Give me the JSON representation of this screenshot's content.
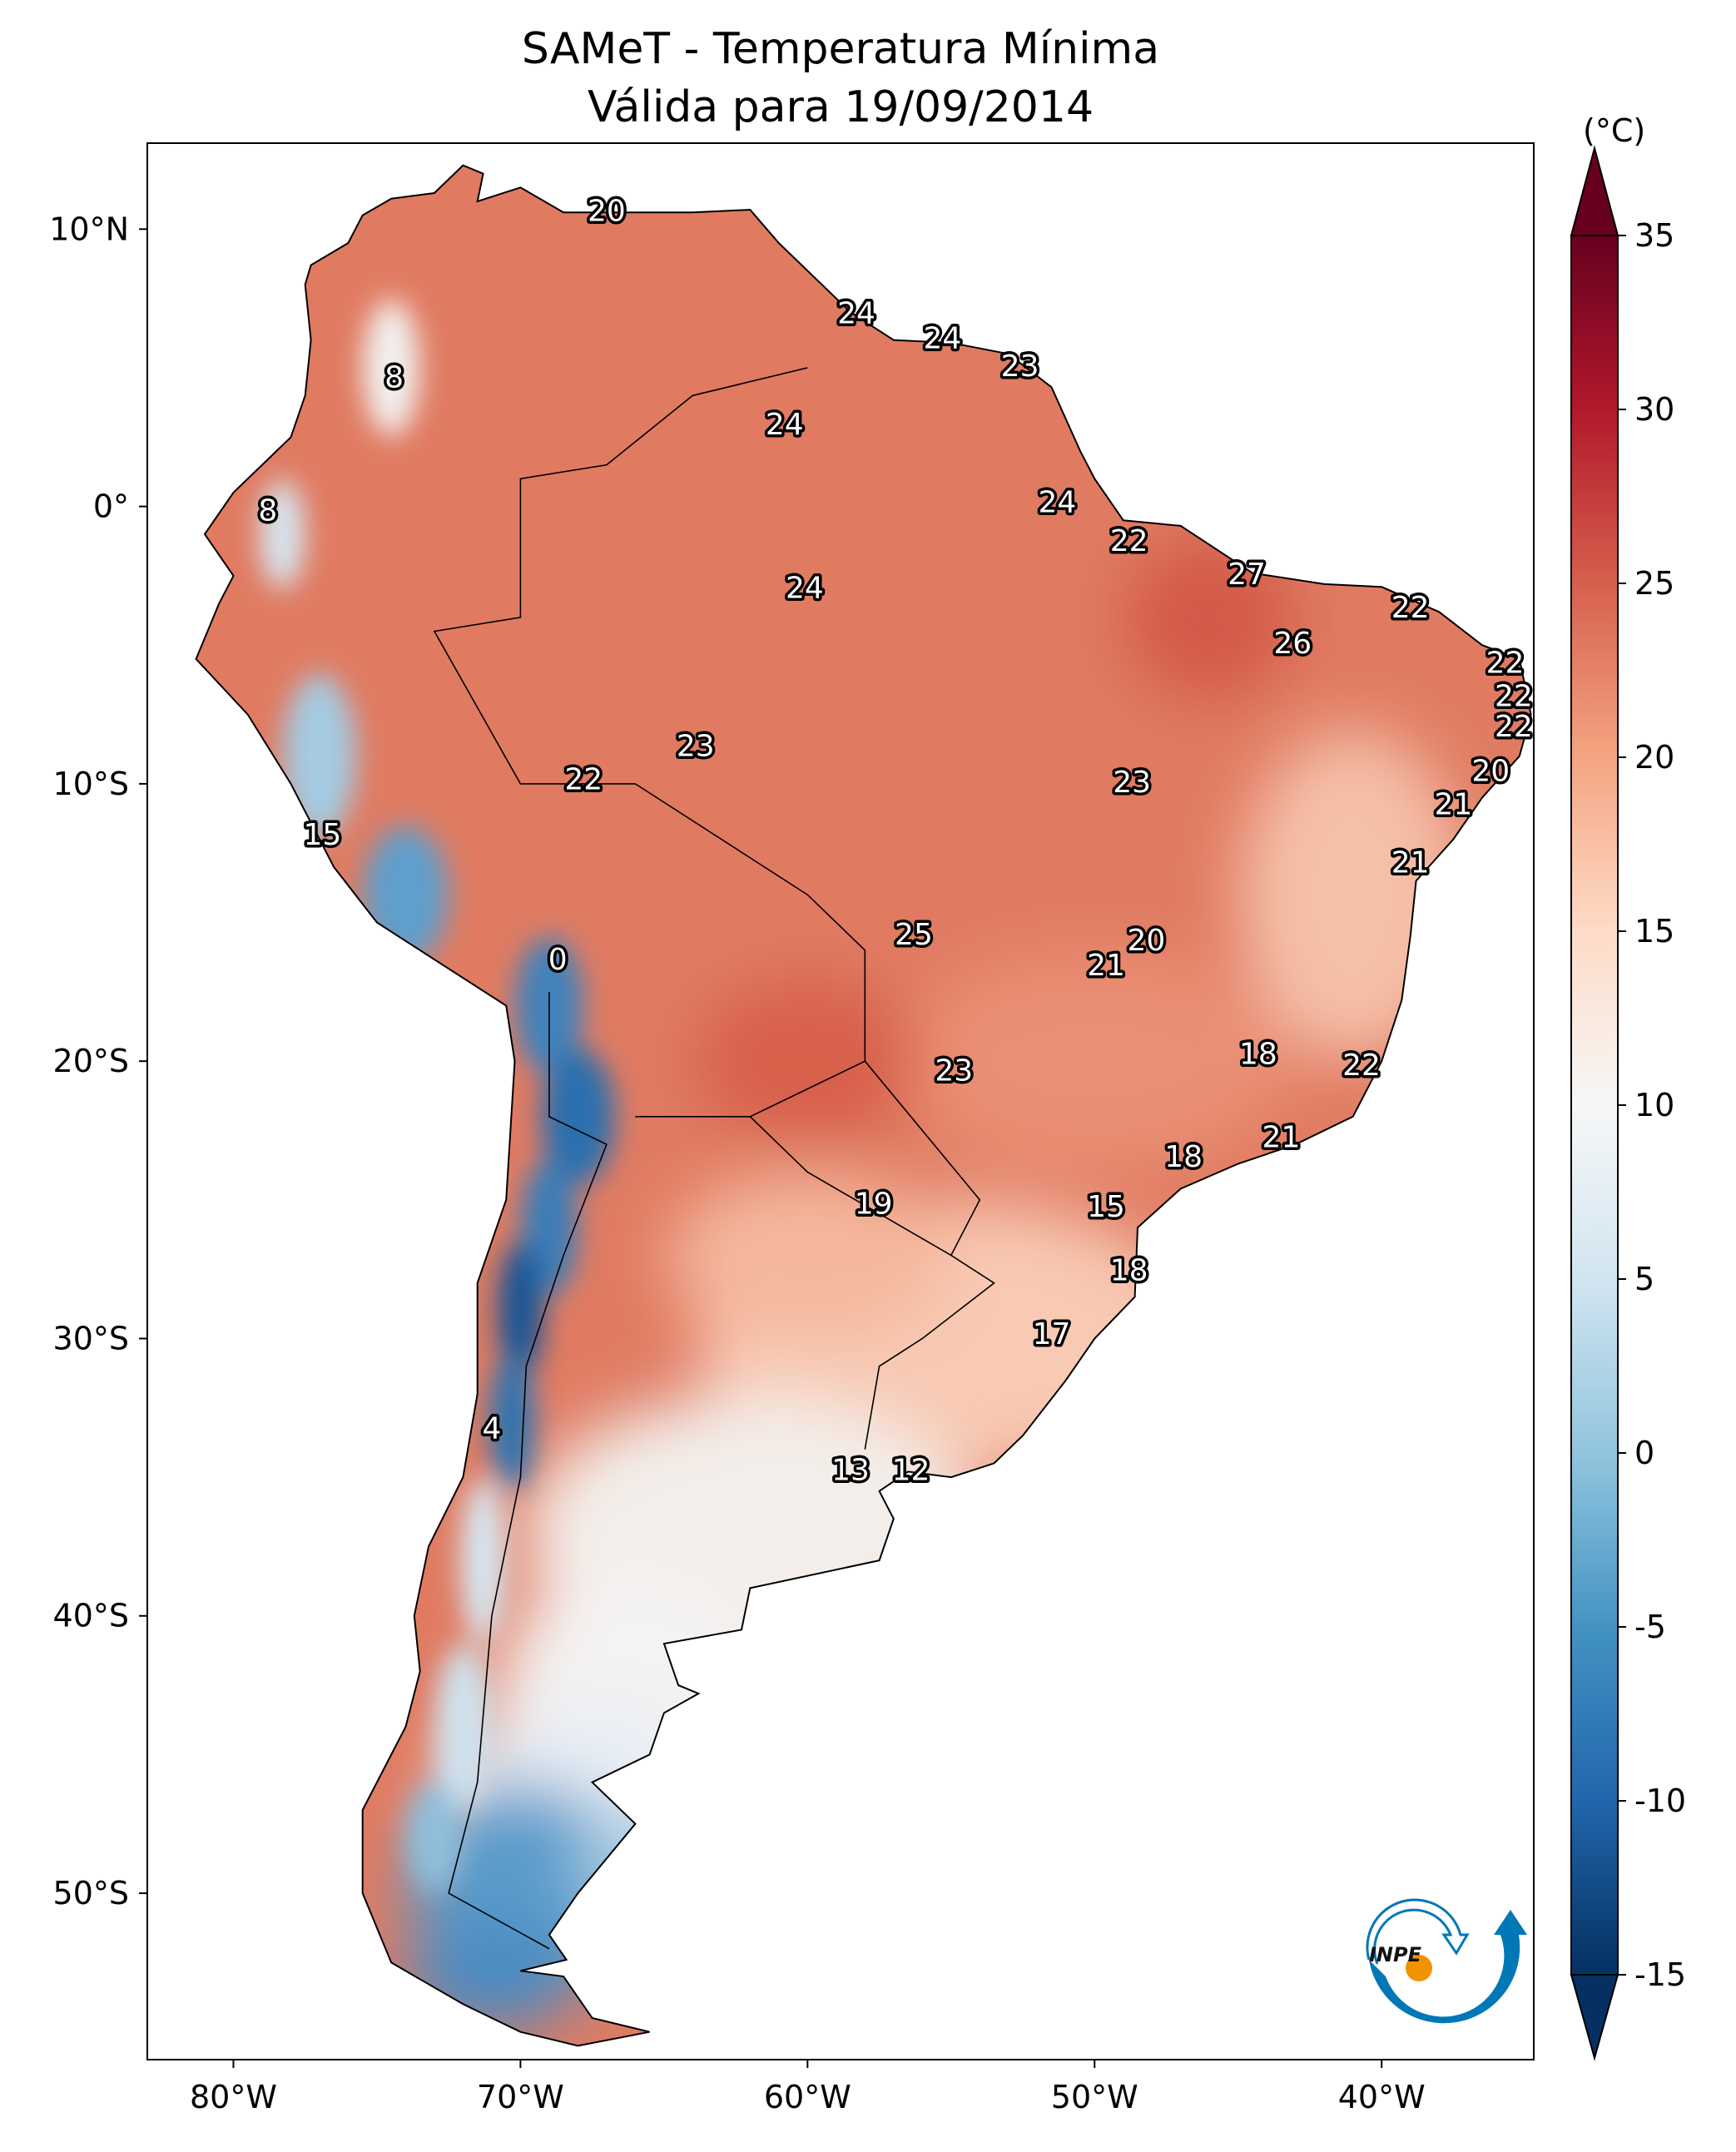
{
  "title": {
    "line1": "SAMeT - Temperatura Mínima",
    "line2": "Válida para 19/09/2014"
  },
  "map": {
    "lon_range": [
      -83,
      -34.7
    ],
    "lat_range": [
      -56,
      13.1
    ],
    "x_ticks": [
      {
        "lon": -80,
        "label": "80°W"
      },
      {
        "lon": -70,
        "label": "70°W"
      },
      {
        "lon": -60,
        "label": "60°W"
      },
      {
        "lon": -50,
        "label": "50°W"
      },
      {
        "lon": -40,
        "label": "40°W"
      }
    ],
    "y_ticks": [
      {
        "lat": 10,
        "label": "10°N"
      },
      {
        "lat": 0,
        "label": "0°"
      },
      {
        "lat": -10,
        "label": "10°S"
      },
      {
        "lat": -20,
        "label": "20°S"
      },
      {
        "lat": -30,
        "label": "30°S"
      },
      {
        "lat": -40,
        "label": "40°S"
      },
      {
        "lat": -50,
        "label": "50°S"
      }
    ],
    "station_values": [
      {
        "lon": -67.0,
        "lat": 10.6,
        "value": "20"
      },
      {
        "lon": -58.3,
        "lat": 6.9,
        "value": "24"
      },
      {
        "lon": -55.3,
        "lat": 6.0,
        "value": "24"
      },
      {
        "lon": -52.6,
        "lat": 5.0,
        "value": "23"
      },
      {
        "lon": -74.4,
        "lat": 4.6,
        "value": "8"
      },
      {
        "lon": -60.8,
        "lat": 2.9,
        "value": "24"
      },
      {
        "lon": -78.8,
        "lat": -0.2,
        "value": "8"
      },
      {
        "lon": -51.3,
        "lat": 0.1,
        "value": "24"
      },
      {
        "lon": -48.8,
        "lat": -1.3,
        "value": "22"
      },
      {
        "lon": -44.7,
        "lat": -2.5,
        "value": "27"
      },
      {
        "lon": -60.1,
        "lat": -3.0,
        "value": "24"
      },
      {
        "lon": -39.0,
        "lat": -3.7,
        "value": "22"
      },
      {
        "lon": -43.1,
        "lat": -5.0,
        "value": "26"
      },
      {
        "lon": -35.7,
        "lat": -5.7,
        "value": "22"
      },
      {
        "lon": -35.4,
        "lat": -6.9,
        "value": "22"
      },
      {
        "lon": -35.4,
        "lat": -8.0,
        "value": "22"
      },
      {
        "lon": -63.9,
        "lat": -8.7,
        "value": "23"
      },
      {
        "lon": -36.2,
        "lat": -9.6,
        "value": "20"
      },
      {
        "lon": -67.8,
        "lat": -9.9,
        "value": "22"
      },
      {
        "lon": -48.7,
        "lat": -10.0,
        "value": "23"
      },
      {
        "lon": -37.5,
        "lat": -10.8,
        "value": "21"
      },
      {
        "lon": -76.9,
        "lat": -11.9,
        "value": "15"
      },
      {
        "lon": -39.0,
        "lat": -12.9,
        "value": "21"
      },
      {
        "lon": -56.3,
        "lat": -15.5,
        "value": "25"
      },
      {
        "lon": -48.2,
        "lat": -15.7,
        "value": "20"
      },
      {
        "lon": -68.7,
        "lat": -16.4,
        "value": "0"
      },
      {
        "lon": -49.6,
        "lat": -16.6,
        "value": "21"
      },
      {
        "lon": -44.3,
        "lat": -19.8,
        "value": "18"
      },
      {
        "lon": -40.7,
        "lat": -20.2,
        "value": "22"
      },
      {
        "lon": -54.9,
        "lat": -20.4,
        "value": "23"
      },
      {
        "lon": -46.9,
        "lat": -23.5,
        "value": "18"
      },
      {
        "lon": -43.5,
        "lat": -22.8,
        "value": "21"
      },
      {
        "lon": -57.7,
        "lat": -25.2,
        "value": "19"
      },
      {
        "lon": -49.6,
        "lat": -25.3,
        "value": "15"
      },
      {
        "lon": -48.8,
        "lat": -27.6,
        "value": "18"
      },
      {
        "lon": -51.5,
        "lat": -29.9,
        "value": "17"
      },
      {
        "lon": -71.0,
        "lat": -33.3,
        "value": "4"
      },
      {
        "lon": -58.5,
        "lat": -34.8,
        "value": "13"
      },
      {
        "lon": -56.4,
        "lat": -34.8,
        "value": "12"
      }
    ]
  },
  "colorbar": {
    "unit": "(°C)",
    "min": -15,
    "max": 35,
    "extend": "both",
    "colormap": "RdBu_r",
    "colors": [
      "#053061",
      "#2166ac",
      "#4393c3",
      "#92c5de",
      "#d1e5f0",
      "#f7f7f7",
      "#fddbc7",
      "#f4a582",
      "#d6604d",
      "#b2182b",
      "#67001f"
    ],
    "ticks": [
      "-15",
      "-10",
      "-5",
      "0",
      "5",
      "10",
      "15",
      "20",
      "25",
      "30",
      "35"
    ]
  },
  "logo": {
    "text": "INPE",
    "colors": {
      "blue": "#0077b6",
      "orange": "#f39200"
    }
  }
}
